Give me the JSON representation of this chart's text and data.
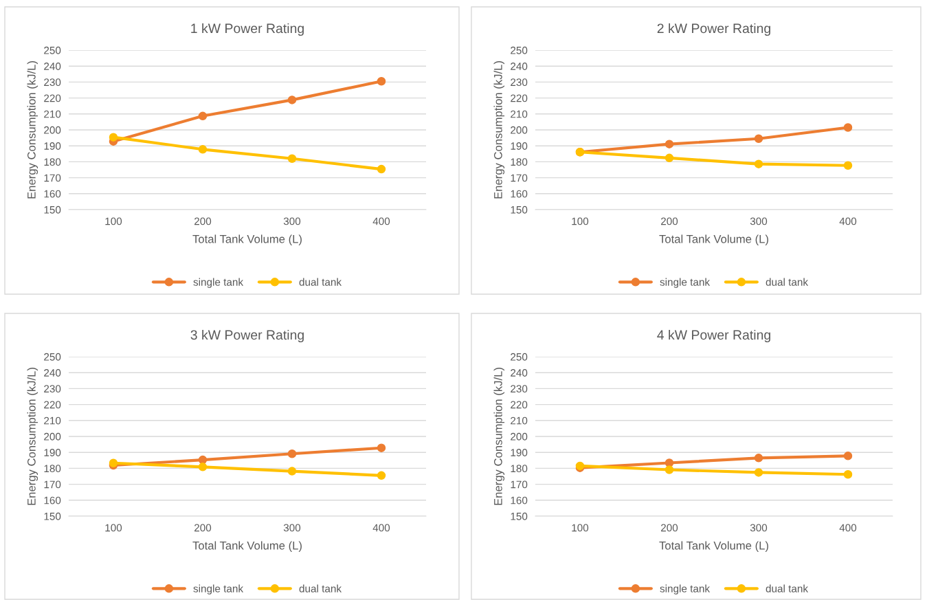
{
  "chart_data": [
    {
      "type": "line",
      "title": "1 kW Power Rating",
      "xlabel": "Total Tank Volume (L)",
      "ylabel": "Energy Consumption (kJ/L)",
      "categories": [
        "100",
        "200",
        "300",
        "400"
      ],
      "ylim": [
        150,
        250
      ],
      "yticks": [
        150,
        160,
        170,
        180,
        190,
        200,
        210,
        220,
        230,
        240,
        250
      ],
      "grid": "y",
      "legend": "bottom",
      "marker": "circle",
      "line_style": "solid",
      "series": [
        {
          "name": "single tank",
          "color": "#ed7d31",
          "values": [
            192.8,
            208.7,
            218.8,
            230.5
          ]
        },
        {
          "name": "dual tank",
          "color": "#ffc000",
          "values": [
            195.4,
            187.8,
            182.0,
            175.4
          ]
        }
      ]
    },
    {
      "type": "line",
      "title": "2 kW Power Rating",
      "xlabel": "Total Tank Volume (L)",
      "ylabel": "Energy Consumption (kJ/L)",
      "categories": [
        "100",
        "200",
        "300",
        "400"
      ],
      "ylim": [
        150,
        250
      ],
      "yticks": [
        150,
        160,
        170,
        180,
        190,
        200,
        210,
        220,
        230,
        240,
        250
      ],
      "grid": "y",
      "legend": "bottom",
      "marker": "circle",
      "line_style": "solid",
      "series": [
        {
          "name": "single tank",
          "color": "#ed7d31",
          "values": [
            186.1,
            191.1,
            194.5,
            201.5
          ]
        },
        {
          "name": "dual tank",
          "color": "#ffc000",
          "values": [
            186.1,
            182.4,
            178.6,
            177.7
          ]
        }
      ]
    },
    {
      "type": "line",
      "title": "3 kW Power Rating",
      "xlabel": "Total Tank Volume (L)",
      "ylabel": "Energy Consumption (kJ/L)",
      "categories": [
        "100",
        "200",
        "300",
        "400"
      ],
      "ylim": [
        150,
        250
      ],
      "yticks": [
        150,
        160,
        170,
        180,
        190,
        200,
        210,
        220,
        230,
        240,
        250
      ],
      "grid": "y",
      "legend": "bottom",
      "marker": "circle",
      "line_style": "solid",
      "series": [
        {
          "name": "single tank",
          "color": "#ed7d31",
          "values": [
            181.9,
            185.3,
            189.1,
            192.8
          ]
        },
        {
          "name": "dual tank",
          "color": "#ffc000",
          "values": [
            183.3,
            180.9,
            178.2,
            175.5
          ]
        }
      ]
    },
    {
      "type": "line",
      "title": "4 kW Power Rating",
      "xlabel": "Total Tank Volume (L)",
      "ylabel": "Energy Consumption (kJ/L)",
      "categories": [
        "100",
        "200",
        "300",
        "400"
      ],
      "ylim": [
        150,
        250
      ],
      "yticks": [
        150,
        160,
        170,
        180,
        190,
        200,
        210,
        220,
        230,
        240,
        250
      ],
      "grid": "y",
      "legend": "bottom",
      "marker": "circle",
      "line_style": "solid",
      "series": [
        {
          "name": "single tank",
          "color": "#ed7d31",
          "values": [
            180.3,
            183.4,
            186.5,
            187.8
          ]
        },
        {
          "name": "dual tank",
          "color": "#ffc000",
          "values": [
            181.5,
            179.1,
            177.4,
            176.2
          ]
        }
      ]
    }
  ]
}
